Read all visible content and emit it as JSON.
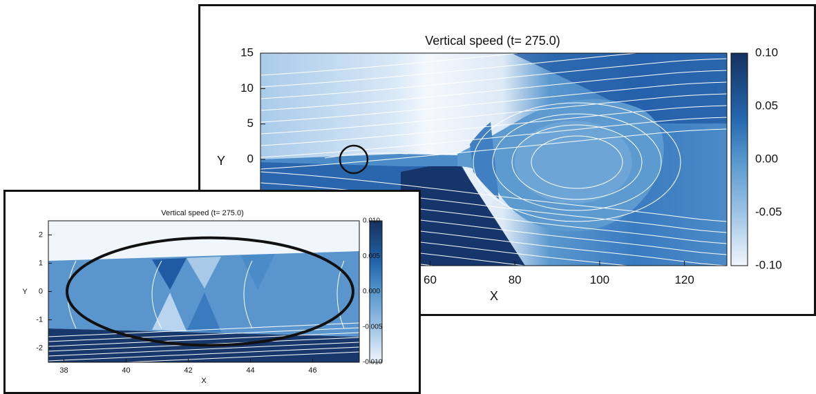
{
  "chart_data": [
    {
      "id": "main",
      "type": "heatmap",
      "title": "Vertical speed (t= 275.0)",
      "xlabel": "X",
      "ylabel": "Y",
      "xlim": [
        20,
        130
      ],
      "ylim": [
        -15,
        15
      ],
      "x_ticks": [
        {
          "value": 60,
          "label": "60"
        },
        {
          "value": 80,
          "label": "80"
        },
        {
          "value": 100,
          "label": "100"
        },
        {
          "value": 120,
          "label": "120"
        }
      ],
      "y_ticks": [
        {
          "value": 15,
          "label": "15"
        },
        {
          "value": 10,
          "label": "10"
        },
        {
          "value": 5,
          "label": "5"
        },
        {
          "value": 0,
          "label": "0"
        }
      ],
      "colorbar": {
        "range": [
          -0.1,
          0.1
        ],
        "ticks": [
          {
            "value": 0.1,
            "label": "0.10"
          },
          {
            "value": 0.05,
            "label": "0.05"
          },
          {
            "value": 0.0,
            "label": "0.00"
          },
          {
            "value": -0.05,
            "label": "-0.05"
          },
          {
            "value": -0.1,
            "label": "-0.10"
          }
        ]
      },
      "highlight_circle": {
        "x": 42,
        "y": 0
      }
    },
    {
      "id": "inset",
      "type": "heatmap",
      "title": "Vertical speed (t= 275.0)",
      "xlabel": "X",
      "ylabel": "Y",
      "xlim": [
        37.5,
        47.5
      ],
      "ylim": [
        -2.5,
        2.5
      ],
      "x_ticks": [
        {
          "value": 38,
          "label": "38"
        },
        {
          "value": 40,
          "label": "40"
        },
        {
          "value": 42,
          "label": "42"
        },
        {
          "value": 44,
          "label": "44"
        },
        {
          "value": 46,
          "label": "46"
        }
      ],
      "y_ticks": [
        {
          "value": 2,
          "label": "2"
        },
        {
          "value": 1,
          "label": "1"
        },
        {
          "value": 0,
          "label": "0"
        },
        {
          "value": -1,
          "label": "-1"
        },
        {
          "value": -2,
          "label": "-2"
        }
      ],
      "colorbar": {
        "range": [
          -0.01,
          0.01
        ],
        "ticks": [
          {
            "value": 0.01,
            "label": "0.010"
          },
          {
            "value": 0.005,
            "label": "0.005"
          },
          {
            "value": 0.0,
            "label": "0.000"
          },
          {
            "value": -0.005,
            "label": "-0.005"
          },
          {
            "value": -0.01,
            "label": "-0.010"
          }
        ]
      },
      "highlight_ellipse": {
        "cx": 42.7,
        "cy": 0,
        "rx": 4.6,
        "ry": 1.9
      }
    }
  ],
  "colors": {
    "lightest": "#f1f6fc",
    "light": "#c4daef",
    "mid": "#5597cd",
    "dark": "#2366ad",
    "darkest": "#15325f",
    "streamline": "#ffffff",
    "frame": "#111111"
  }
}
